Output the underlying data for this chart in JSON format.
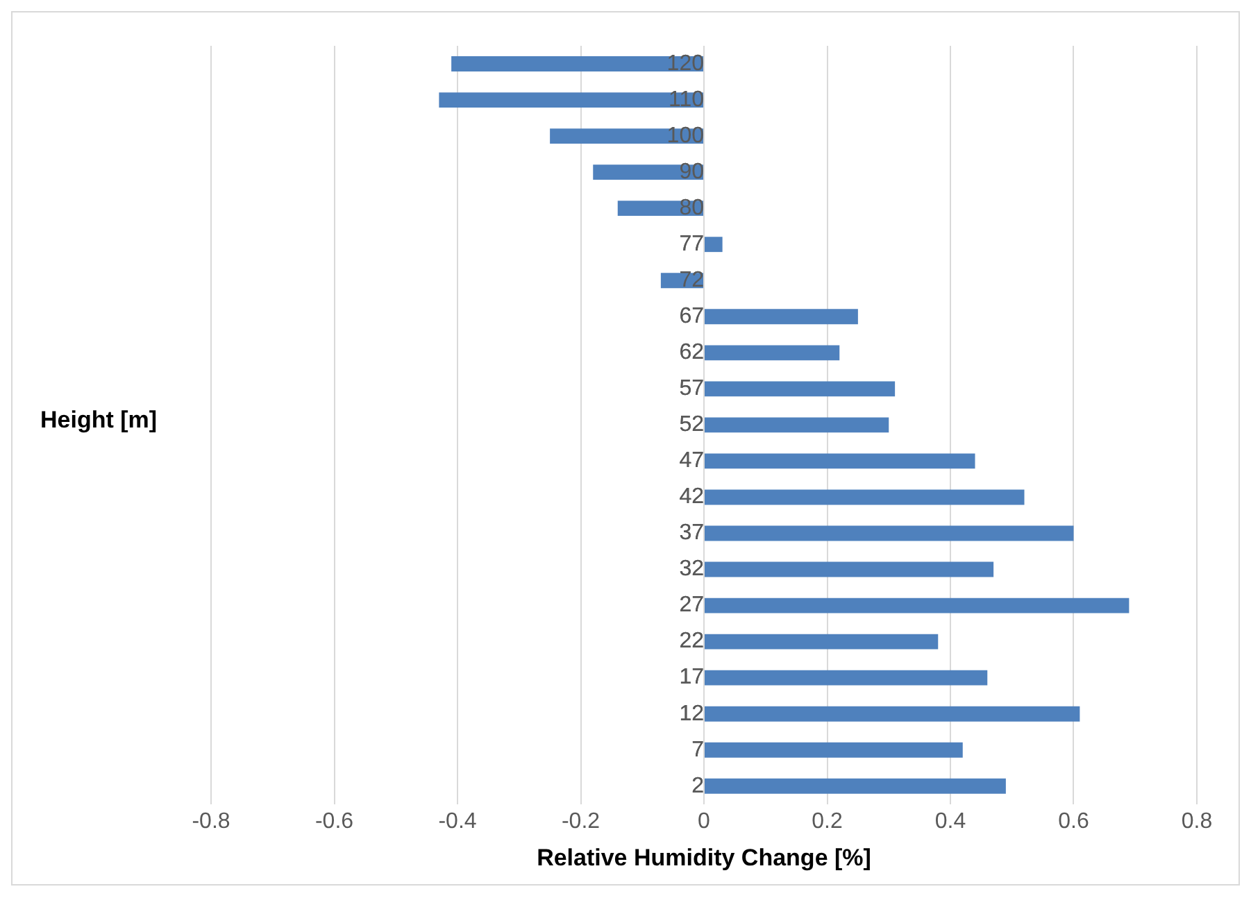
{
  "chart_data": {
    "type": "bar",
    "orientation": "horizontal",
    "xlabel": "Relative Humidity Change [%]",
    "ylabel": "Height [m]",
    "categories": [
      "120",
      "110",
      "100",
      "90",
      "80",
      "77",
      "72",
      "67",
      "62",
      "57",
      "52",
      "47",
      "42",
      "37",
      "32",
      "27",
      "22",
      "17",
      "12",
      "7",
      "2"
    ],
    "values": [
      -0.41,
      -0.43,
      -0.25,
      -0.18,
      -0.14,
      0.03,
      -0.07,
      0.25,
      0.22,
      0.31,
      0.3,
      0.44,
      0.52,
      0.6,
      0.47,
      0.69,
      0.38,
      0.46,
      0.61,
      0.42,
      0.49
    ],
    "color": "#4f81bd",
    "xlim": [
      -0.8,
      0.8
    ],
    "xticks": [
      -0.8,
      -0.6,
      -0.4,
      -0.2,
      0,
      0.2,
      0.4,
      0.6,
      0.8
    ],
    "grid": "x",
    "legend": false
  }
}
